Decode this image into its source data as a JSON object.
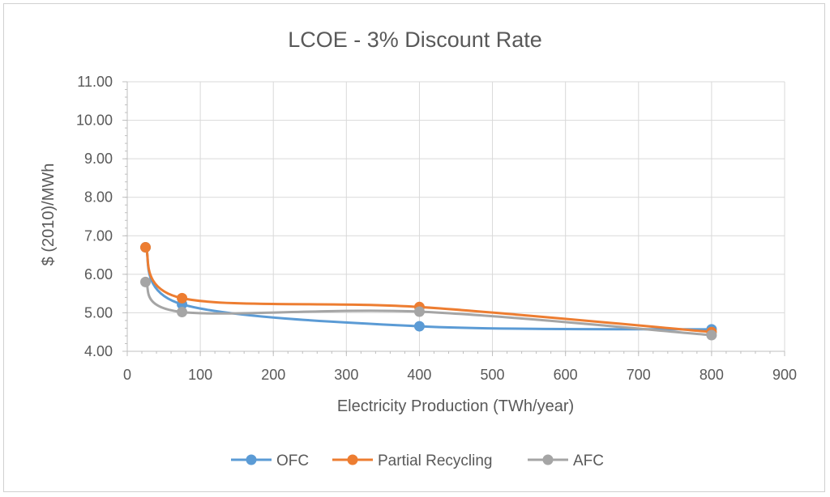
{
  "chart_data": {
    "type": "line",
    "title": "LCOE - 3% Discount Rate",
    "xlabel": "Electricity Production (TWh/year)",
    "ylabel": "$ (2010)/MWh",
    "xlim": [
      0,
      900
    ],
    "ylim": [
      4.0,
      11.0
    ],
    "xticks": [
      0,
      100,
      200,
      300,
      400,
      500,
      600,
      700,
      800,
      900
    ],
    "yticks": [
      4.0,
      5.0,
      6.0,
      7.0,
      8.0,
      9.0,
      10.0,
      11.0
    ],
    "xtick_labels": [
      "0",
      "100",
      "200",
      "300",
      "400",
      "500",
      "600",
      "700",
      "800",
      "900"
    ],
    "ytick_labels": [
      "4.00",
      "5.00",
      "6.00",
      "7.00",
      "8.00",
      "9.00",
      "10.00",
      "11.00"
    ],
    "grid": "vertical and horizontal major gridlines",
    "legend_position": "bottom",
    "smooth": true,
    "series": [
      {
        "name": "OFC",
        "color": "#5B9BD5",
        "x": [
          25,
          75,
          400,
          800
        ],
        "values": [
          6.7,
          5.22,
          4.65,
          4.57
        ]
      },
      {
        "name": "Partial Recycling",
        "color": "#ED7D31",
        "x": [
          25,
          75,
          400,
          800
        ],
        "values": [
          6.7,
          5.38,
          5.15,
          4.5
        ]
      },
      {
        "name": "AFC",
        "color": "#A5A5A5",
        "x": [
          25,
          75,
          400,
          800
        ],
        "values": [
          5.8,
          5.02,
          5.03,
          4.42
        ]
      }
    ]
  }
}
